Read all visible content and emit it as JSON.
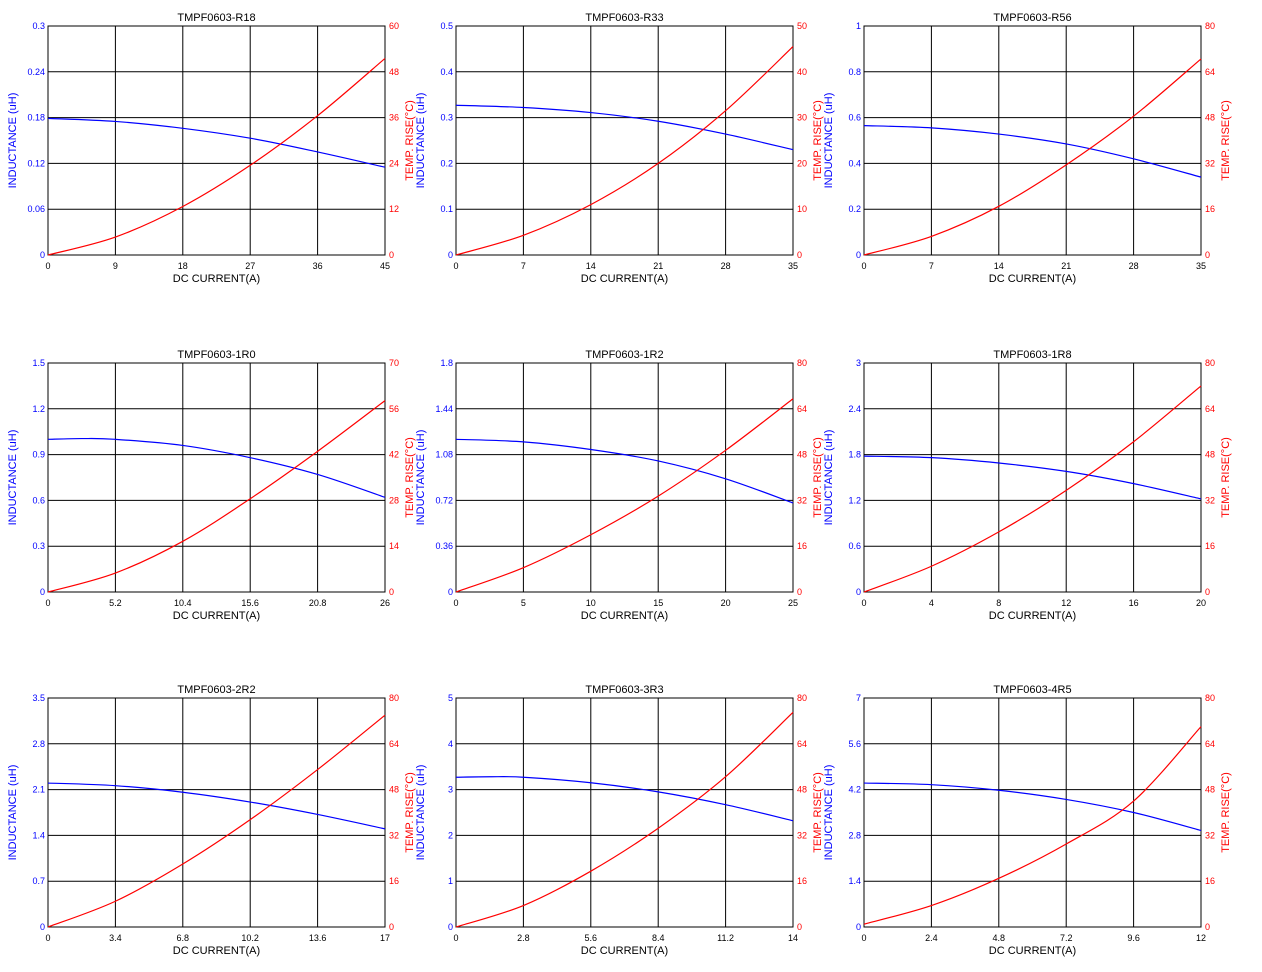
{
  "colors": {
    "inductance": "#0000ff",
    "temp": "#ff0000",
    "grid": "#000000"
  },
  "chart_data": [
    {
      "type": "line",
      "title": "TMPF0603-R18",
      "xlabel": "DC CURRENT(A)",
      "ylabel": "INDUCTANCE (uH)",
      "y2label": "TEMP. RISE(°C)",
      "xlim": [
        0,
        45
      ],
      "ylim": [
        0,
        0.3
      ],
      "y2lim": [
        0,
        60
      ],
      "xticks": [
        "0",
        "9",
        "18",
        "27",
        "36",
        "45"
      ],
      "yticks": [
        "0",
        "0.06",
        "0.12",
        "0.18",
        "0.24",
        "0.3"
      ],
      "y2ticks": [
        "0",
        "12",
        "24",
        "36",
        "48",
        "60"
      ],
      "grid": true,
      "series": [
        {
          "axis": "left",
          "x": [
            0,
            9,
            18,
            27,
            36,
            45
          ],
          "y": [
            0.179,
            0.175,
            0.166,
            0.153,
            0.135,
            0.115
          ]
        },
        {
          "axis": "right",
          "x": [
            0,
            9,
            18,
            27,
            36,
            45
          ],
          "y": [
            0,
            4.7,
            12.7,
            23.5,
            36.5,
            51.5
          ]
        }
      ]
    },
    {
      "type": "line",
      "title": "TMPF0603-R33",
      "xlabel": "DC CURRENT(A)",
      "ylabel": "INDUCTANCE (uH)",
      "y2label": "TEMP. RISE(°C)",
      "xlim": [
        0,
        35
      ],
      "ylim": [
        0,
        0.5
      ],
      "y2lim": [
        0,
        50
      ],
      "xticks": [
        "0",
        "7",
        "14",
        "21",
        "28",
        "35"
      ],
      "yticks": [
        "0",
        "0.1",
        "0.2",
        "0.3",
        "0.4",
        "0.5"
      ],
      "y2ticks": [
        "0",
        "10",
        "20",
        "30",
        "40",
        "50"
      ],
      "grid": true,
      "series": [
        {
          "axis": "left",
          "x": [
            0,
            7,
            14,
            21,
            28,
            35
          ],
          "y": [
            0.327,
            0.322,
            0.311,
            0.292,
            0.264,
            0.23
          ]
        },
        {
          "axis": "right",
          "x": [
            0,
            7,
            14,
            21,
            28,
            35
          ],
          "y": [
            0,
            4.3,
            11,
            20,
            31.5,
            45.5
          ]
        }
      ]
    },
    {
      "type": "line",
      "title": "TMPF0603-R56",
      "xlabel": "DC CURRENT(A)",
      "ylabel": "INDUCTANCE (uH)",
      "y2label": "TEMP. RISE(°C)",
      "xlim": [
        0,
        35
      ],
      "ylim": [
        0,
        1
      ],
      "y2lim": [
        0,
        80
      ],
      "xticks": [
        "0",
        "7",
        "14",
        "21",
        "28",
        "35"
      ],
      "yticks": [
        "0",
        "0.2",
        "0.4",
        "0.6",
        "0.8",
        "1"
      ],
      "y2ticks": [
        "0",
        "16",
        "32",
        "48",
        "64",
        "80"
      ],
      "grid": true,
      "series": [
        {
          "axis": "left",
          "x": [
            0,
            7,
            14,
            21,
            28,
            35
          ],
          "y": [
            0.565,
            0.555,
            0.528,
            0.485,
            0.42,
            0.34
          ]
        },
        {
          "axis": "right",
          "x": [
            0,
            7,
            14,
            21,
            28,
            35
          ],
          "y": [
            0,
            6.5,
            17,
            31.5,
            48.5,
            68.5
          ]
        }
      ]
    },
    {
      "type": "line",
      "title": "TMPF0603-1R0",
      "xlabel": "DC CURRENT(A)",
      "ylabel": "INDUCTANCE (uH)",
      "y2label": "TEMP. RISE(°C)",
      "xlim": [
        0,
        26
      ],
      "ylim": [
        0,
        1.5
      ],
      "y2lim": [
        0,
        70
      ],
      "xticks": [
        "0",
        "5.2",
        "10.4",
        "15.6",
        "20.8",
        "26"
      ],
      "yticks": [
        "0",
        "0.3",
        "0.6",
        "0.9",
        "1.2",
        "1.5"
      ],
      "y2ticks": [
        "0",
        "14",
        "28",
        "42",
        "56",
        "70"
      ],
      "grid": true,
      "series": [
        {
          "axis": "left",
          "x": [
            0,
            2.6,
            5.2,
            10.4,
            15.6,
            20.8,
            26
          ],
          "y": [
            1.0,
            1.005,
            1.0,
            0.96,
            0.88,
            0.77,
            0.62
          ]
        },
        {
          "axis": "right",
          "x": [
            0,
            5.2,
            10.4,
            15.6,
            20.8,
            26
          ],
          "y": [
            0,
            5.8,
            15.5,
            28.5,
            43,
            58.5
          ]
        }
      ]
    },
    {
      "type": "line",
      "title": "TMPF0603-1R2",
      "xlabel": "DC CURRENT(A)",
      "ylabel": "INDUCTANCE (uH)",
      "y2label": "TEMP. RISE(°C)",
      "xlim": [
        0,
        25
      ],
      "ylim": [
        0,
        1.8
      ],
      "y2lim": [
        0,
        80
      ],
      "xticks": [
        "0",
        "5",
        "10",
        "15",
        "20",
        "25"
      ],
      "yticks": [
        "0",
        "0.36",
        "0.72",
        "1.08",
        "1.44",
        "1.8"
      ],
      "y2ticks": [
        "0",
        "16",
        "32",
        "48",
        "64",
        "80"
      ],
      "grid": true,
      "series": [
        {
          "axis": "left",
          "x": [
            0,
            5,
            10,
            15,
            20,
            25
          ],
          "y": [
            1.2,
            1.18,
            1.12,
            1.03,
            0.89,
            0.7
          ]
        },
        {
          "axis": "right",
          "x": [
            0,
            5,
            10,
            15,
            20,
            25
          ],
          "y": [
            0,
            8.5,
            20,
            33.5,
            49.5,
            67.5
          ]
        }
      ]
    },
    {
      "type": "line",
      "title": "TMPF0603-1R8",
      "xlabel": "DC CURRENT(A)",
      "ylabel": "INDUCTANCE (uH)",
      "y2label": "TEMP. RISE(°C)",
      "xlim": [
        0,
        20
      ],
      "ylim": [
        0,
        3
      ],
      "y2lim": [
        0,
        80
      ],
      "xticks": [
        "0",
        "4",
        "8",
        "12",
        "16",
        "20"
      ],
      "yticks": [
        "0",
        "0.6",
        "1.2",
        "1.8",
        "2.4",
        "3"
      ],
      "y2ticks": [
        "0",
        "16",
        "32",
        "48",
        "64",
        "80"
      ],
      "grid": true,
      "series": [
        {
          "axis": "left",
          "x": [
            0,
            4,
            8,
            12,
            16,
            20
          ],
          "y": [
            1.78,
            1.76,
            1.69,
            1.58,
            1.42,
            1.22
          ]
        },
        {
          "axis": "right",
          "x": [
            0,
            4,
            8,
            12,
            16,
            20
          ],
          "y": [
            0,
            9,
            21,
            35.5,
            52.5,
            72
          ]
        }
      ]
    },
    {
      "type": "line",
      "title": "TMPF0603-2R2",
      "xlabel": "DC CURRENT(A)",
      "ylabel": "INDUCTANCE (uH)",
      "y2label": "TEMP. RISE(°C)",
      "xlim": [
        0,
        17
      ],
      "ylim": [
        0,
        3.5
      ],
      "y2lim": [
        0,
        80
      ],
      "xticks": [
        "0",
        "3.4",
        "6.8",
        "10.2",
        "13.6",
        "17"
      ],
      "yticks": [
        "0",
        "0.7",
        "1.4",
        "2.1",
        "2.8",
        "3.5"
      ],
      "y2ticks": [
        "0",
        "16",
        "32",
        "48",
        "64",
        "80"
      ],
      "grid": true,
      "series": [
        {
          "axis": "left",
          "x": [
            0,
            3.4,
            6.8,
            10.2,
            13.6,
            17
          ],
          "y": [
            2.2,
            2.16,
            2.06,
            1.91,
            1.72,
            1.5
          ]
        },
        {
          "axis": "right",
          "x": [
            0,
            3.4,
            6.8,
            10.2,
            13.6,
            17
          ],
          "y": [
            0,
            9,
            22,
            37.5,
            55,
            74
          ]
        }
      ]
    },
    {
      "type": "line",
      "title": "TMPF0603-3R3",
      "xlabel": "DC CURRENT(A)",
      "ylabel": "INDUCTANCE (uH)",
      "y2label": "TEMP. RISE(°C)",
      "xlim": [
        0,
        14
      ],
      "ylim": [
        0,
        5
      ],
      "y2lim": [
        0,
        80
      ],
      "xticks": [
        "0",
        "2.8",
        "5.6",
        "8.4",
        "11.2",
        "14"
      ],
      "yticks": [
        "0",
        "1",
        "2",
        "3",
        "4",
        "5"
      ],
      "y2ticks": [
        "0",
        "16",
        "32",
        "48",
        "64",
        "80"
      ],
      "grid": true,
      "series": [
        {
          "axis": "left",
          "x": [
            0,
            1.4,
            2.8,
            5.6,
            8.4,
            11.2,
            14
          ],
          "y": [
            3.27,
            3.28,
            3.27,
            3.15,
            2.95,
            2.67,
            2.32
          ]
        },
        {
          "axis": "right",
          "x": [
            0,
            2.8,
            5.6,
            8.4,
            11.2,
            14
          ],
          "y": [
            0,
            7.5,
            19.5,
            34.5,
            52.5,
            75
          ]
        }
      ]
    },
    {
      "type": "line",
      "title": "TMPF0603-4R5",
      "xlabel": "DC CURRENT(A)",
      "ylabel": "INDUCTANCE (uH)",
      "y2label": "TEMP. RISE(°C)",
      "xlim": [
        0,
        12
      ],
      "ylim": [
        0,
        7
      ],
      "y2lim": [
        0,
        80
      ],
      "xticks": [
        "0",
        "2.4",
        "4.8",
        "7.2",
        "9.6",
        "12"
      ],
      "yticks": [
        "0",
        "1.4",
        "2.8",
        "4.2",
        "5.6",
        "7"
      ],
      "y2ticks": [
        "0",
        "16",
        "32",
        "48",
        "64",
        "80"
      ],
      "grid": true,
      "series": [
        {
          "axis": "left",
          "x": [
            0,
            2.4,
            4.8,
            7.2,
            9.6,
            12
          ],
          "y": [
            4.4,
            4.35,
            4.18,
            3.9,
            3.5,
            2.95
          ]
        },
        {
          "axis": "right",
          "x": [
            0,
            2.4,
            4.8,
            7.2,
            9.6,
            12
          ],
          "y": [
            1,
            7.5,
            17,
            29,
            44,
            70
          ]
        }
      ]
    }
  ]
}
